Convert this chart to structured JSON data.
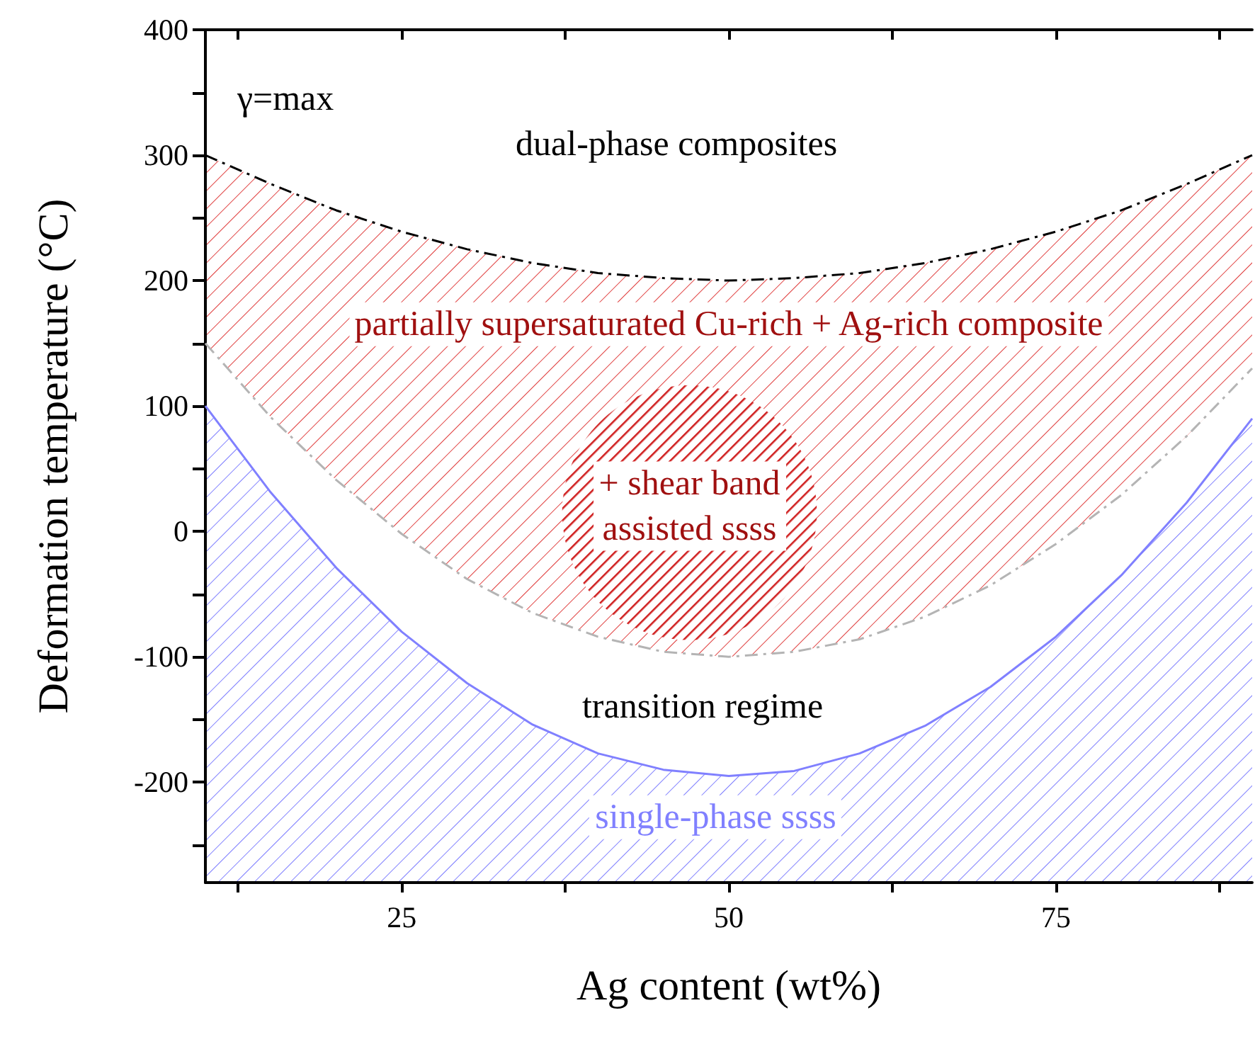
{
  "chart_data": {
    "type": "line",
    "xlabel": "Ag content (wt%)",
    "ylabel": "Deformation temperature (°C)",
    "x": [
      10,
      15,
      20,
      25,
      30,
      35,
      40,
      45,
      50,
      55,
      60,
      65,
      70,
      75,
      80,
      85,
      90
    ],
    "xlim": [
      10,
      90
    ],
    "xticks": [
      25,
      50,
      75
    ],
    "ylim": [
      -280,
      400
    ],
    "yticks": [
      -200,
      -100,
      0,
      100,
      200,
      300,
      400
    ],
    "grid": false,
    "marker": "none",
    "series": [
      {
        "color": "#000000",
        "line_style": "dashed",
        "values": [
          300,
          277,
          256,
          239,
          225,
          214,
          206,
          202,
          200,
          202,
          206,
          214,
          225,
          239,
          256,
          277,
          300
        ]
      },
      {
        "color": "#b4b4b4",
        "line_style": "dashed",
        "values": [
          150,
          91,
          41,
          -2,
          -38,
          -65,
          -84,
          -96,
          -100,
          -96,
          -86,
          -68,
          -43,
          -10,
          29,
          76,
          130
        ]
      },
      {
        "color": "#8080ff",
        "line_style": "solid",
        "values": [
          100,
          31,
          -29,
          -80,
          -121,
          -154,
          -177,
          -190,
          -195,
          -191,
          -177,
          -155,
          -124,
          -84,
          -35,
          23,
          90
        ]
      }
    ],
    "annotations": [
      "γ=max",
      "dual-phase composites",
      "partially supersaturated Cu-rich + Ag-rich composite",
      "+ shear band\nassisted ssss",
      "transition regime",
      "single-phase ssss"
    ]
  }
}
